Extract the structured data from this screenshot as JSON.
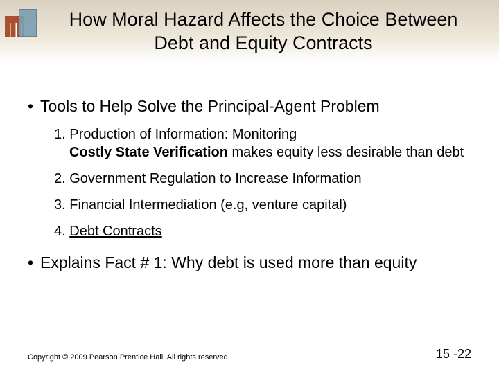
{
  "title": "How Moral Hazard Affects the Choice Between Debt and Equity Contracts",
  "main_bullet": "Tools to Help Solve the Principal-Agent Problem",
  "items": [
    {
      "n": "1.",
      "text": "Production of Information: Monitoring",
      "sub_bold": "Costly State Verification",
      "sub_rest": " makes equity less desirable than debt",
      "underline": false
    },
    {
      "n": "2.",
      "text": "Government Regulation to Increase Information",
      "underline": false
    },
    {
      "n": "3.",
      "text": "Financial Intermediation (e.g, venture capital)",
      "underline": false
    },
    {
      "n": "4.",
      "text": "Debt Contracts",
      "underline": true
    }
  ],
  "closing_bullet": "Explains Fact # 1: Why debt is used more than equity",
  "copyright": "Copyright © 2009 Pearson Prentice Hall. All rights reserved.",
  "page_number": "15 -22",
  "colors": {
    "band_top": "#d9d0c0",
    "band_bottom": "#ffffff",
    "text": "#000000",
    "logo_brick": "#a85030",
    "logo_glass": "#7a9fb0"
  },
  "typography": {
    "title_fontsize": 27,
    "main_bullet_fontsize": 23,
    "numitem_fontsize": 20,
    "copyright_fontsize": 11,
    "pagenum_fontsize": 18,
    "font_family": "Arial"
  }
}
